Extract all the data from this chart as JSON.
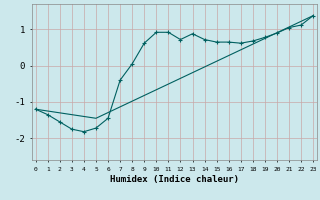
{
  "xlabel": "Humidex (Indice chaleur)",
  "bg_color": "#cce8ec",
  "grid_color": "#c8a8a8",
  "line_color": "#006060",
  "line1_x": [
    0,
    1,
    2,
    3,
    4,
    5,
    6,
    7,
    8,
    9,
    10,
    11,
    12,
    13,
    14,
    15,
    16,
    17,
    18,
    19,
    20,
    21,
    22,
    23
  ],
  "line1_y": [
    -1.2,
    -1.35,
    -1.55,
    -1.75,
    -1.82,
    -1.72,
    -1.45,
    -0.4,
    0.05,
    0.62,
    0.92,
    0.92,
    0.72,
    0.88,
    0.72,
    0.65,
    0.65,
    0.62,
    0.68,
    0.78,
    0.9,
    1.05,
    1.12,
    1.38
  ],
  "line2_x": [
    0,
    5,
    23
  ],
  "line2_y": [
    -1.2,
    -1.45,
    1.38
  ],
  "xticks": [
    0,
    1,
    2,
    3,
    4,
    5,
    6,
    7,
    8,
    9,
    10,
    11,
    12,
    13,
    14,
    15,
    16,
    17,
    18,
    19,
    20,
    21,
    22,
    23
  ],
  "yticks": [
    -2,
    -1,
    0,
    1
  ],
  "xlim": [
    -0.3,
    23.3
  ],
  "ylim": [
    -2.6,
    1.7
  ]
}
